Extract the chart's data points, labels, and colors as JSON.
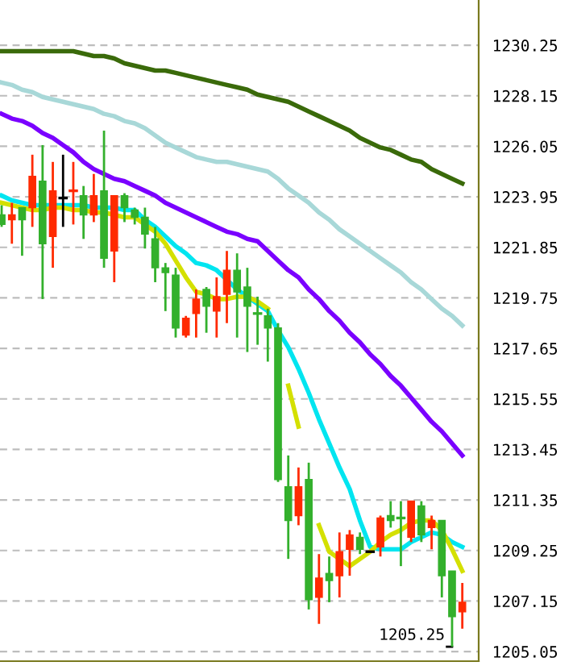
{
  "chart_data": {
    "type": "candlestick",
    "categories": [
      null,
      null,
      null,
      null,
      null,
      null,
      null,
      null,
      null,
      null,
      null,
      null,
      null,
      null,
      null,
      null,
      null,
      null,
      null,
      null,
      null,
      null,
      null,
      null,
      null,
      null,
      null,
      null,
      null,
      null,
      null,
      null,
      null,
      null,
      null,
      null,
      null,
      null,
      null,
      null,
      null,
      null,
      null,
      null,
      null,
      null
    ],
    "ohlc": [
      [
        1223.2,
        1223.6,
        1222.7,
        1222.8
      ],
      [
        1223.0,
        1223.7,
        1222.0,
        1223.2
      ],
      [
        1223.5,
        1223.5,
        1221.5,
        1223.0
      ],
      [
        1223.5,
        1225.7,
        1222.7,
        1224.8
      ],
      [
        1224.6,
        1226.1,
        1219.7,
        1222.0
      ],
      [
        1222.3,
        1225.4,
        1221.0,
        1224.2
      ],
      [
        1223.9,
        1225.7,
        1222.7,
        1223.9
      ],
      [
        1224.2,
        1225.4,
        1222.8,
        1224.2
      ],
      [
        1224.0,
        1224.4,
        1222.2,
        1223.2
      ],
      [
        1223.2,
        1224.9,
        1222.9,
        1224.0
      ],
      [
        1224.2,
        1226.7,
        1221.0,
        1221.4
      ],
      [
        1221.7,
        1224.0,
        1220.4,
        1224.0
      ],
      [
        1224.0,
        1224.1,
        1222.9,
        1223.5
      ],
      [
        1223.4,
        1223.5,
        1222.8,
        1223.1
      ],
      [
        1223.1,
        1223.5,
        1221.8,
        1222.4
      ],
      [
        1222.2,
        1222.7,
        1220.4,
        1221.0
      ],
      [
        1221.0,
        1221.2,
        1219.2,
        1220.8
      ],
      [
        1220.7,
        1221.0,
        1218.1,
        1218.5
      ],
      [
        1218.2,
        1219.0,
        1218.1,
        1218.9
      ],
      [
        1219.1,
        1220.1,
        1218.1,
        1219.7
      ],
      [
        1220.1,
        1220.2,
        1218.3,
        1219.4
      ],
      [
        1219.2,
        1220.6,
        1218.1,
        1219.8
      ],
      [
        1219.9,
        1221.7,
        1218.7,
        1220.9
      ],
      [
        1220.9,
        1221.6,
        1218.1,
        1220.0
      ],
      [
        1220.2,
        1221.0,
        1217.5,
        1219.4
      ],
      [
        1219.1,
        1219.8,
        1217.8,
        1219.1
      ],
      [
        1219.0,
        1219.3,
        1217.1,
        1218.5
      ],
      [
        1218.5,
        1218.7,
        1212.1,
        1212.2
      ],
      [
        1211.9,
        1213.2,
        1208.9,
        1210.5
      ],
      [
        1210.7,
        1212.7,
        1210.3,
        1211.9
      ],
      [
        1212.2,
        1212.9,
        1206.8,
        1207.2
      ],
      [
        1207.3,
        1209.1,
        1206.2,
        1208.1
      ],
      [
        1208.3,
        1209.0,
        1207.1,
        1208.0
      ],
      [
        1208.2,
        1210.0,
        1207.3,
        1209.2
      ],
      [
        1209.3,
        1210.1,
        1208.2,
        1209.9
      ],
      [
        1209.8,
        1210.0,
        1209.1,
        1209.3
      ],
      [
        1209.2,
        1209.2,
        1209.2,
        1209.2
      ],
      [
        1209.4,
        1210.7,
        1209.0,
        1210.6
      ],
      [
        1210.7,
        1211.3,
        1210.2,
        1210.5
      ],
      [
        1210.6,
        1211.3,
        1208.6,
        1210.6
      ],
      [
        1209.8,
        1211.3,
        1209.6,
        1211.3
      ],
      [
        1211.1,
        1211.3,
        1209.6,
        1209.9
      ],
      [
        1210.2,
        1210.7,
        1209.3,
        1210.5
      ],
      [
        1210.5,
        1210.5,
        1207.3,
        1208.2
      ],
      [
        1208.4,
        1208.4,
        1205.25,
        1206.5
      ],
      [
        1206.7,
        1207.9,
        1206.0,
        1207.1
      ]
    ],
    "colors": [
      "#33b02c",
      "#ff2a00",
      "#33b02c",
      "#ff2a00",
      "#33b02c",
      "#ff2a00",
      "#000000",
      "#ff2a00",
      "#33b02c",
      "#ff2a00",
      "#33b02c",
      "#ff2a00",
      "#33b02c",
      "#33b02c",
      "#33b02c",
      "#33b02c",
      "#33b02c",
      "#33b02c",
      "#ff2a00",
      "#ff2a00",
      "#33b02c",
      "#ff2a00",
      "#ff2a00",
      "#33b02c",
      "#33b02c",
      "#33b02c",
      "#33b02c",
      "#33b02c",
      "#33b02c",
      "#ff2a00",
      "#33b02c",
      "#ff2a00",
      "#33b02c",
      "#ff2a00",
      "#ff2a00",
      "#33b02c",
      "#000000",
      "#ff2a00",
      "#33b02c",
      "#33b02c",
      "#ff2a00",
      "#33b02c",
      "#ff2a00",
      "#33b02c",
      "#33b02c",
      "#ff2a00"
    ],
    "series": [
      {
        "type": "line",
        "color": "#3a6a0a",
        "values": [
          1230.0,
          1230.0,
          1230.0,
          1230.0,
          1230.0,
          1230.0,
          1230.0,
          1230.0,
          1229.9,
          1229.8,
          1229.8,
          1229.7,
          1229.5,
          1229.4,
          1229.3,
          1229.2,
          1229.2,
          1229.1,
          1229.0,
          1228.9,
          1228.8,
          1228.7,
          1228.6,
          1228.5,
          1228.4,
          1228.2,
          1228.1,
          1228.0,
          1227.9,
          1227.7,
          1227.5,
          1227.3,
          1227.1,
          1226.9,
          1226.7,
          1226.4,
          1226.2,
          1226.0,
          1225.9,
          1225.7,
          1225.5,
          1225.4,
          1225.1,
          1224.9,
          1224.7,
          1224.5
        ]
      },
      {
        "type": "line",
        "color": "#a8d8d8",
        "values": [
          1228.7,
          1228.6,
          1228.4,
          1228.3,
          1228.1,
          1228.0,
          1227.9,
          1227.8,
          1227.7,
          1227.6,
          1227.4,
          1227.3,
          1227.1,
          1227.0,
          1226.8,
          1226.5,
          1226.2,
          1226.0,
          1225.8,
          1225.6,
          1225.5,
          1225.4,
          1225.4,
          1225.3,
          1225.2,
          1225.1,
          1225.0,
          1224.7,
          1224.3,
          1224.0,
          1223.7,
          1223.3,
          1223.0,
          1222.6,
          1222.3,
          1222.0,
          1221.7,
          1221.4,
          1221.1,
          1220.8,
          1220.4,
          1220.1,
          1219.7,
          1219.3,
          1219.0,
          1218.6
        ]
      },
      {
        "type": "line",
        "color": "#7a00ff",
        "values": [
          1227.4,
          1227.2,
          1227.1,
          1226.9,
          1226.6,
          1226.4,
          1226.1,
          1225.8,
          1225.4,
          1225.1,
          1224.9,
          1224.7,
          1224.6,
          1224.4,
          1224.2,
          1224.0,
          1223.7,
          1223.5,
          1223.3,
          1223.1,
          1222.9,
          1222.7,
          1222.5,
          1222.4,
          1222.2,
          1222.1,
          1221.7,
          1221.3,
          1220.9,
          1220.6,
          1220.1,
          1219.7,
          1219.2,
          1218.8,
          1218.3,
          1217.9,
          1217.4,
          1217.0,
          1216.5,
          1216.1,
          1215.6,
          1215.1,
          1214.6,
          1214.2,
          1213.7,
          1213.2
        ]
      },
      {
        "type": "line",
        "color": "#00e5f0",
        "values": [
          1224.0,
          1223.8,
          1223.7,
          1223.6,
          1223.6,
          1223.6,
          1223.6,
          1223.6,
          1223.6,
          1223.5,
          1223.5,
          1223.5,
          1223.4,
          1223.4,
          1223.0,
          1222.7,
          1222.3,
          1221.9,
          1221.6,
          1221.2,
          1221.1,
          1220.9,
          1220.5,
          1220.1,
          1219.8,
          1219.5,
          1219.2,
          1218.4,
          1217.7,
          1216.8,
          1215.8,
          1214.7,
          1213.7,
          1212.7,
          1211.8,
          1210.5,
          1209.4,
          1209.3,
          1209.3,
          1209.3,
          1209.6,
          1209.8,
          1210.0,
          1209.9,
          1209.6,
          1209.4
        ]
      },
      {
        "type": "line",
        "color": "#d4e000",
        "values": [
          1223.7,
          1223.6,
          1223.5,
          1223.4,
          1223.4,
          1223.5,
          1223.5,
          1223.4,
          1223.4,
          1223.3,
          1223.3,
          1223.2,
          1223.1,
          1223.1,
          1222.8,
          1222.5,
          1222.0,
          1221.3,
          1220.6,
          1220.0,
          1219.9,
          1219.7,
          1219.7,
          1219.8,
          1219.8,
          1219.6,
          1219.3,
          null,
          1216.1,
          1214.4,
          null,
          1210.3,
          1209.2,
          1208.9,
          1208.6,
          1208.9,
          1209.2,
          1209.6,
          1209.9,
          1210.1,
          1210.4,
          1210.5,
          1210.5,
          1210.1,
          1209.3,
          1208.4
        ]
      }
    ],
    "ylim": [
      1204.65,
      1232.13
    ],
    "yticks": [
      1230.25,
      1228.15,
      1226.05,
      1223.95,
      1221.85,
      1219.75,
      1217.65,
      1215.55,
      1213.45,
      1211.35,
      1209.25,
      1207.15,
      1205.05
    ],
    "annotations": [
      "1205.25"
    ],
    "grid": "y",
    "tick_labels": "y"
  }
}
